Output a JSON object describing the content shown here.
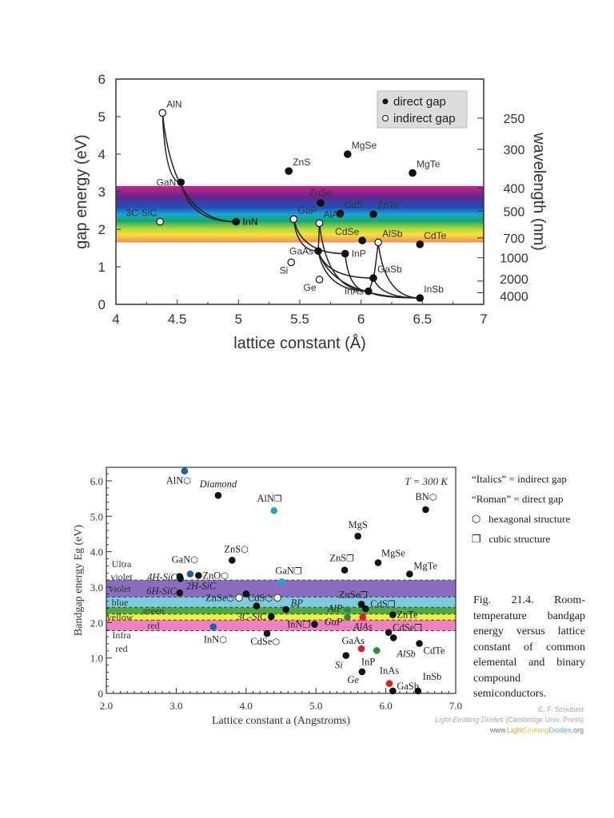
{
  "chart_data": [
    {
      "type": "scatter",
      "xlabel": "lattice constant (Å)",
      "ylabel": "gap energy (eV)",
      "y2label": "wavelength (nm)",
      "xlim": [
        4,
        7
      ],
      "ylim": [
        0,
        6
      ],
      "xticks": [
        "4",
        "4.5",
        "5",
        "5.5",
        "6",
        "6.5",
        "7"
      ],
      "yticks": [
        "0",
        "1",
        "2",
        "3",
        "4",
        "5",
        "6"
      ],
      "y2ticks": [
        {
          "label": "250",
          "energy": 4.96
        },
        {
          "label": "300",
          "energy": 4.13
        },
        {
          "label": "400",
          "energy": 3.1
        },
        {
          "label": "500",
          "energy": 2.48
        },
        {
          "label": "700",
          "energy": 1.77
        },
        {
          "label": "1000",
          "energy": 1.24
        },
        {
          "label": "2000",
          "energy": 0.62
        },
        {
          "label": "4000",
          "energy": 0.31
        }
      ],
      "visible_band": [
        1.65,
        3.15
      ],
      "legend": {
        "position": "top-right",
        "direct": "direct gap",
        "indirect": "indirect gap"
      },
      "points": [
        {
          "name": "AlN",
          "x": 4.38,
          "y": 5.1,
          "gap": "indirect",
          "side": "above-right"
        },
        {
          "name": "GaN",
          "x": 4.53,
          "y": 3.25,
          "gap": "direct",
          "side": "left"
        },
        {
          "name": "InN",
          "x": 4.98,
          "y": 2.2,
          "gap": "direct",
          "side": "right"
        },
        {
          "name": "3C-SiC",
          "x": 4.36,
          "y": 2.2,
          "gap": "indirect",
          "side": "above-left"
        },
        {
          "name": "ZnS",
          "x": 5.41,
          "y": 3.55,
          "gap": "direct",
          "side": "above-right"
        },
        {
          "name": "MgSe",
          "x": 5.89,
          "y": 4.0,
          "gap": "direct",
          "side": "above-right"
        },
        {
          "name": "MgTe",
          "x": 6.42,
          "y": 3.5,
          "gap": "direct",
          "side": "above-right"
        },
        {
          "name": "ZnSe",
          "x": 5.67,
          "y": 2.7,
          "gap": "direct",
          "side": "above"
        },
        {
          "name": "CdS",
          "x": 5.83,
          "y": 2.42,
          "gap": "direct",
          "side": "above-right"
        },
        {
          "name": "ZnTe",
          "x": 6.1,
          "y": 2.4,
          "gap": "direct",
          "side": "above-right"
        },
        {
          "name": "GaP",
          "x": 5.45,
          "y": 2.27,
          "gap": "indirect",
          "side": "above-right"
        },
        {
          "name": "AlAs",
          "x": 5.66,
          "y": 2.16,
          "gap": "indirect",
          "side": "above-right"
        },
        {
          "name": "CdSe",
          "x": 6.01,
          "y": 1.7,
          "gap": "direct",
          "side": "above-left"
        },
        {
          "name": "AlSb",
          "x": 6.14,
          "y": 1.65,
          "gap": "indirect",
          "side": "above-right"
        },
        {
          "name": "CdTe",
          "x": 6.48,
          "y": 1.6,
          "gap": "direct",
          "side": "above-right"
        },
        {
          "name": "GaAs",
          "x": 5.65,
          "y": 1.42,
          "gap": "direct",
          "side": "left"
        },
        {
          "name": "InP",
          "x": 5.87,
          "y": 1.35,
          "gap": "direct",
          "side": "right"
        },
        {
          "name": "Si",
          "x": 5.43,
          "y": 1.12,
          "gap": "indirect",
          "side": "below-left"
        },
        {
          "name": "Ge",
          "x": 5.66,
          "y": 0.66,
          "gap": "indirect",
          "side": "below-left"
        },
        {
          "name": "GaSb",
          "x": 6.1,
          "y": 0.7,
          "gap": "direct",
          "side": "above-right"
        },
        {
          "name": "InAs",
          "x": 6.06,
          "y": 0.35,
          "gap": "direct",
          "side": "left"
        },
        {
          "name": "InSb",
          "x": 6.48,
          "y": 0.17,
          "gap": "direct",
          "side": "above-right"
        }
      ],
      "tie_lines": [
        [
          "AlN",
          "GaN"
        ],
        [
          "AlN",
          "InN"
        ],
        [
          "GaN",
          "InN"
        ],
        [
          "GaP",
          "InP"
        ],
        [
          "GaP",
          "GaAs"
        ],
        [
          "AlAs",
          "GaAs"
        ],
        [
          "AlAs",
          "InAs"
        ],
        [
          "GaAs",
          "InAs"
        ],
        [
          "GaAs",
          "InSb"
        ],
        [
          "InP",
          "InAs"
        ],
        [
          "GaAs",
          "GaSb"
        ],
        [
          "GaSb",
          "InSb"
        ],
        [
          "InAs",
          "InSb"
        ],
        [
          "AlSb",
          "InSb"
        ],
        [
          "AlSb",
          "GaSb"
        ],
        [
          "InAs",
          "GaSb"
        ]
      ]
    },
    {
      "type": "scatter",
      "xlabel": "Lattice constant a (Angstroms)",
      "ylabel": "Bandgap energy Eg (eV)",
      "xlim": [
        2.0,
        7.0
      ],
      "ylim": [
        0,
        6.4
      ],
      "xticks": [
        "2.0",
        "3.0",
        "4.0",
        "5.0",
        "6.0",
        "7.0"
      ],
      "yticks": [
        "0",
        "1.0",
        "2.0",
        "3.0",
        "4.0",
        "5.0",
        "6.0"
      ],
      "annotation": "T = 300 K",
      "bands": [
        {
          "label": "violet",
          "from": 2.72,
          "to": 3.2,
          "color": "#8a6cc0"
        },
        {
          "label": "blue",
          "from": 2.43,
          "to": 2.72,
          "color": "#7ccbe0"
        },
        {
          "label": "green",
          "from": 2.24,
          "to": 2.43,
          "color": "#4caa3e"
        },
        {
          "label": "yellow",
          "from": 2.07,
          "to": 2.24,
          "color": "#f3ee3c"
        },
        {
          "label": "red",
          "from": 1.77,
          "to": 2.07,
          "color": "#f080c0"
        }
      ],
      "region_labels": {
        "uv": [
          "Ultra",
          "violet"
        ],
        "ir": [
          "Infra",
          "red"
        ]
      },
      "points": [
        {
          "name": "AlN",
          "x": 3.12,
          "y": 6.28,
          "color": "#1f5fa8",
          "structure": "hex",
          "italic": false
        },
        {
          "name": "Diamond",
          "x": 3.6,
          "y": 5.59,
          "color": "#111111",
          "italic": true
        },
        {
          "name": "AlN",
          "x": 4.4,
          "y": 5.16,
          "color": "#2aa0c8",
          "structure": "cubic",
          "italic": false
        },
        {
          "name": "BN",
          "x": 6.57,
          "y": 5.19,
          "color": "#111111",
          "structure": "hex",
          "italic": false
        },
        {
          "name": "MgS",
          "x": 5.6,
          "y": 4.44,
          "color": "#111111",
          "italic": false
        },
        {
          "name": "ZnS",
          "x": 5.41,
          "y": 3.48,
          "color": "#111111",
          "structure": "cubic",
          "italic": false
        },
        {
          "name": "MgSe",
          "x": 5.89,
          "y": 3.69,
          "color": "#111111",
          "italic": false
        },
        {
          "name": "MgTe",
          "x": 6.34,
          "y": 3.37,
          "color": "#111111",
          "italic": false
        },
        {
          "name": "GaN",
          "x": 3.2,
          "y": 3.37,
          "color": "#1f5fa8",
          "structure": "hex",
          "italic": false
        },
        {
          "name": "ZnO",
          "x": 3.32,
          "y": 3.33,
          "color": "#111111",
          "structure": "hex",
          "italic": false
        },
        {
          "name": "ZnS",
          "x": 3.8,
          "y": 3.76,
          "color": "#111111",
          "structure": "hex",
          "italic": false
        },
        {
          "name": "4H-SiC",
          "x": 3.06,
          "y": 3.24,
          "color": "#111111",
          "italic": true
        },
        {
          "name": "2H-SiC",
          "x": 3.05,
          "y": 3.3,
          "color": "#111111",
          "italic": true
        },
        {
          "name": "6H-SiC",
          "x": 3.05,
          "y": 2.84,
          "color": "#111111",
          "italic": true
        },
        {
          "name": "GaN",
          "x": 4.51,
          "y": 3.15,
          "color": "#2aa0c8",
          "structure": "cubic",
          "italic": false
        },
        {
          "name": "ZnSe",
          "x": 3.9,
          "y": 2.7,
          "color": "#ffffff",
          "structure": "hex",
          "italic": false
        },
        {
          "name": "",
          "x": 4.0,
          "y": 2.81,
          "color": "#111111",
          "italic": false
        },
        {
          "name": "CdS",
          "x": 4.45,
          "y": 2.7,
          "color": "#ffffff",
          "structure": "hex",
          "italic": false
        },
        {
          "name": "",
          "x": 4.15,
          "y": 2.47,
          "color": "#111111",
          "italic": false
        },
        {
          "name": "BP",
          "x": 4.57,
          "y": 2.37,
          "color": "#111111",
          "italic": true
        },
        {
          "name": "3C-SiC",
          "x": 4.36,
          "y": 2.17,
          "color": "#111111",
          "italic": true
        },
        {
          "name": "InN",
          "x": 3.53,
          "y": 1.88,
          "color": "#1f5fa8",
          "structure": "hex",
          "italic": false
        },
        {
          "name": "CdSe",
          "x": 4.3,
          "y": 1.69,
          "color": "#111111",
          "structure": "hex",
          "italic": false
        },
        {
          "name": "InN",
          "x": 4.98,
          "y": 1.95,
          "color": "#111111",
          "structure": "cubic",
          "italic": false
        },
        {
          "name": "AlP",
          "x": 5.45,
          "y": 2.36,
          "color": "#2e8b3e",
          "italic": true
        },
        {
          "name": "GaP",
          "x": 5.45,
          "y": 2.15,
          "color": "#2e8b3e",
          "italic": true
        },
        {
          "name": "AlAs",
          "x": 5.67,
          "y": 2.15,
          "color": "#e02020",
          "italic": true
        },
        {
          "name": "ZnSe",
          "x": 5.65,
          "y": 2.52,
          "color": "#111111",
          "structure": "cubic",
          "italic": false
        },
        {
          "name": "CdS",
          "x": 5.71,
          "y": 2.39,
          "color": "#111111",
          "structure": "cubic",
          "italic": false
        },
        {
          "name": "ZnTe",
          "x": 6.1,
          "y": 2.22,
          "color": "#111111",
          "italic": false
        },
        {
          "name": "CdSe",
          "x": 6.04,
          "y": 1.72,
          "color": "#111111",
          "structure": "cubic",
          "italic": false
        },
        {
          "name": "AlSb",
          "x": 6.11,
          "y": 1.57,
          "color": "#111111",
          "italic": true
        },
        {
          "name": "CdTe",
          "x": 6.48,
          "y": 1.41,
          "color": "#111111",
          "italic": false
        },
        {
          "name": "GaAs",
          "x": 5.65,
          "y": 1.26,
          "color": "#e02020",
          "italic": false
        },
        {
          "name": "InP",
          "x": 5.87,
          "y": 1.21,
          "color": "#2e8b3e",
          "italic": false
        },
        {
          "name": "Si",
          "x": 5.43,
          "y": 1.07,
          "color": "#111111",
          "italic": true
        },
        {
          "name": "Ge",
          "x": 5.66,
          "y": 0.61,
          "color": "#111111",
          "italic": true
        },
        {
          "name": "InAs",
          "x": 6.05,
          "y": 0.28,
          "color": "#e02020",
          "italic": false
        },
        {
          "name": "GaSb",
          "x": 6.1,
          "y": 0.07,
          "color": "#111111",
          "italic": false
        },
        {
          "name": "InSb",
          "x": 6.46,
          "y": 0.07,
          "color": "#111111",
          "italic": false
        }
      ],
      "legend": {
        "italics": "“Italics” = indirect gap",
        "roman": "“Roman” = direct gap",
        "hex": "hexagonal structure",
        "cubic": "cubic structure"
      }
    }
  ],
  "caption": "Fig. 21.4. Room-temperature bandgap energy versus lattice constant of common elemental and binary compound semiconductors.",
  "credit": {
    "author": "E. F. Schubert",
    "book": "Light-Emitting Diodes",
    "publisher": "(Cambridge Univ. Press)",
    "url_prefix": "www.",
    "url_light": "Light",
    "url_emitting": "Emitting",
    "url_diodes": "Diodes",
    "url_suffix": ".org"
  }
}
